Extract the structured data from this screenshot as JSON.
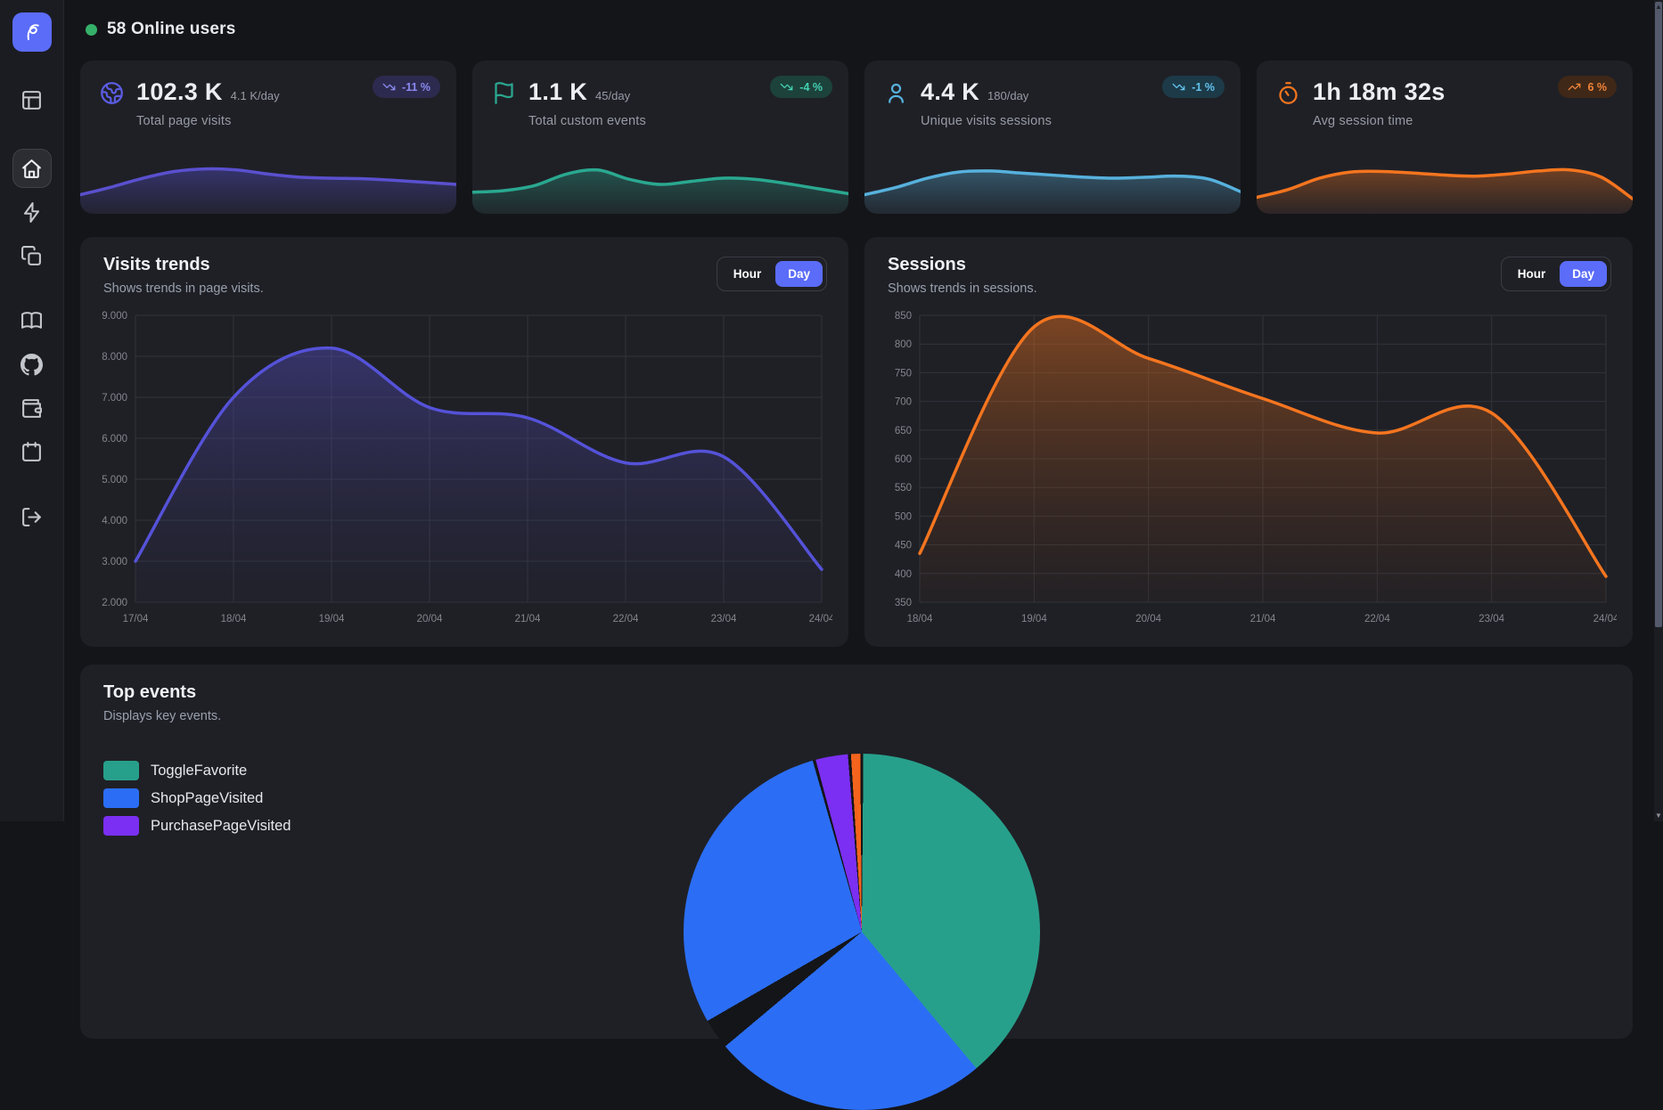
{
  "header": {
    "online_label": "58 Online users",
    "online_dot_color": "#35b06a"
  },
  "sidebar": {
    "logo_color": "#5b6cf9",
    "items": [
      "panels",
      "home",
      "zap",
      "copy",
      "book",
      "github",
      "wallet",
      "calendar"
    ],
    "active_item": "home",
    "logout_item": "log-out"
  },
  "stats": [
    {
      "icon": "globe-icon",
      "icon_color": "#5b5ce2",
      "value": "102.3 K",
      "per_day": "4.1 K/day",
      "label": "Total page visits",
      "badge": {
        "text": "-11 %",
        "trend": "down",
        "bg": "#2d2a4f",
        "fg": "#8a8af2"
      },
      "spark": {
        "color": "#5a50cf",
        "fill_top": "rgba(85,79,208,0.55)",
        "fill_bottom": "rgba(85,79,208,0.06)",
        "points": [
          30,
          45,
          62,
          75,
          80,
          78,
          70,
          64,
          62,
          61,
          58,
          54,
          50
        ]
      }
    },
    {
      "icon": "flag-icon",
      "icon_color": "#2aa890",
      "value": "1.1 K",
      "per_day": "45/day",
      "label": "Total custom events",
      "badge": {
        "text": "-4 %",
        "trend": "down",
        "bg": "#1c423b",
        "fg": "#45d0b2"
      },
      "spark": {
        "color": "#2aa890",
        "fill_top": "rgba(42,168,144,0.5)",
        "fill_bottom": "rgba(42,168,144,0.06)",
        "points": [
          35,
          38,
          48,
          70,
          78,
          60,
          50,
          56,
          62,
          60,
          52,
          42,
          32
        ]
      }
    },
    {
      "icon": "user-icon",
      "icon_color": "#57b1dd",
      "value": "4.4 K",
      "per_day": "180/day",
      "label": "Unique visits sessions",
      "badge": {
        "text": "-1 %",
        "trend": "down",
        "bg": "#1d3a48",
        "fg": "#62c4ef"
      },
      "spark": {
        "color": "#57b1dd",
        "fill_top": "rgba(87,177,221,0.5)",
        "fill_bottom": "rgba(87,177,221,0.06)",
        "points": [
          30,
          44,
          62,
          74,
          76,
          72,
          68,
          64,
          62,
          64,
          66,
          60,
          36
        ]
      }
    },
    {
      "icon": "timer-icon",
      "icon_color": "#f4751f",
      "value": "1h 18m 32s",
      "per_day": "",
      "label": "Avg session time",
      "badge": {
        "text": "6 %",
        "trend": "up",
        "bg": "#3f2817",
        "fg": "#f08438"
      },
      "spark": {
        "color": "#f4751f",
        "fill_top": "rgba(244,117,31,0.5)",
        "fill_bottom": "rgba(244,117,31,0.06)",
        "points": [
          25,
          40,
          62,
          74,
          75,
          72,
          68,
          66,
          70,
          76,
          78,
          64,
          22
        ]
      }
    }
  ],
  "charts": {
    "visits": {
      "title": "Visits trends",
      "subtitle": "Shows trends in page visits.",
      "toggle": {
        "options": [
          "Hour",
          "Day"
        ],
        "selected": "Day",
        "selected_color": "#5b6cf9"
      }
    },
    "sessions": {
      "title": "Sessions",
      "subtitle": "Shows trends in sessions.",
      "toggle": {
        "options": [
          "Hour",
          "Day"
        ],
        "selected": "Day",
        "selected_color": "#5b6cf9"
      }
    }
  },
  "top_events": {
    "title": "Top events",
    "subtitle": "Displays key events.",
    "legend": [
      {
        "label": "ToggleFavorite",
        "color": "#27a08b"
      },
      {
        "label": "ShopPageVisited",
        "color": "#2b6ef5"
      },
      {
        "label": "PurchasePageVisited",
        "color": "#7b2ff2"
      }
    ]
  },
  "chart_data": [
    {
      "type": "area",
      "title": "Visits trends",
      "x": [
        "17/04",
        "18/04",
        "19/04",
        "20/04",
        "21/04",
        "22/04",
        "23/04",
        "24/04"
      ],
      "values": [
        3000,
        7000,
        8200,
        6750,
        6500,
        5400,
        5550,
        2800
      ],
      "ylim": [
        2000,
        9000
      ],
      "yticks": [
        2000,
        3000,
        4000,
        5000,
        6000,
        7000,
        8000,
        9000
      ],
      "ytick_labels": [
        "2.000",
        "3.000",
        "4.000",
        "5.000",
        "6.000",
        "7.000",
        "8.000",
        "9.000"
      ],
      "line_color": "#5552d9",
      "fill_top": "rgba(86,80,200,0.5)",
      "fill_bottom": "rgba(60,56,120,0.05)",
      "grid": true,
      "legend": false
    },
    {
      "type": "area",
      "title": "Sessions",
      "x": [
        "18/04",
        "19/04",
        "20/04",
        "21/04",
        "22/04",
        "23/04",
        "24/04"
      ],
      "values": [
        435,
        830,
        775,
        705,
        645,
        680,
        395
      ],
      "ylim": [
        350,
        850
      ],
      "yticks": [
        350,
        400,
        450,
        500,
        550,
        600,
        650,
        700,
        750,
        800,
        850
      ],
      "ytick_labels": [
        "350",
        "400",
        "450",
        "500",
        "550",
        "600",
        "650",
        "700",
        "750",
        "800",
        "850"
      ],
      "line_color": "#f4751f",
      "fill_top": "rgba(244,117,31,0.45)",
      "fill_bottom": "rgba(120,60,20,0.05)",
      "grid": true,
      "legend": false
    },
    {
      "type": "pie",
      "title": "Top events",
      "legend_position": "left",
      "slices": [
        {
          "label": "ShopPageVisited",
          "color": "#2b6ef5",
          "start_deg": -120,
          "end_deg": -16,
          "approx_percent": 29
        },
        {
          "label": "PurchasePageVisited",
          "color": "#7b2ff2",
          "start_deg": -15,
          "end_deg": -4.5,
          "approx_percent": 3
        },
        {
          "label": "",
          "color": "#f4641c",
          "start_deg": -3.5,
          "end_deg": -0.5,
          "approx_percent": 1
        },
        {
          "label": "ToggleFavorite",
          "color": "#27a08b",
          "start_deg": 0.5,
          "end_deg": 140,
          "approx_percent": 39
        }
      ]
    }
  ]
}
